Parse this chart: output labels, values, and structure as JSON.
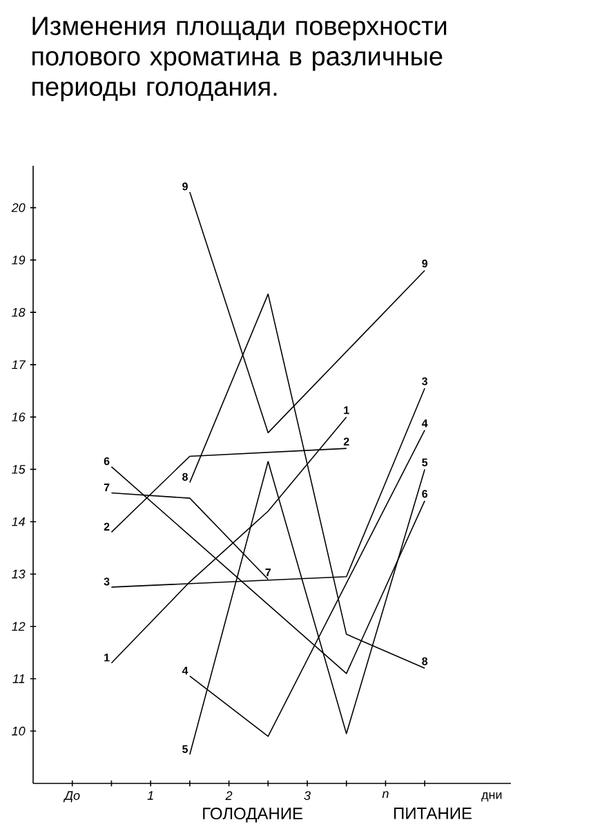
{
  "chart_data": {
    "type": "line",
    "title": "Изменения площади поверхности полового хроматина в различные периоды голодания.",
    "xlabel": "дни",
    "annotations": [
      "ГОЛОДАНИЕ",
      "ПИТАНИЕ"
    ],
    "xlim": [
      -0.5,
      5.6
    ],
    "ylim": [
      9,
      20.8
    ],
    "xticks": [
      {
        "value": 0,
        "label": "До"
      },
      {
        "value": 0.5,
        "label": null
      },
      {
        "value": 1,
        "label": "1"
      },
      {
        "value": 1.5,
        "label": null
      },
      {
        "value": 2,
        "label": "2"
      },
      {
        "value": 2.5,
        "label": null
      },
      {
        "value": 3,
        "label": "3"
      },
      {
        "value": 3.5,
        "label": null
      },
      {
        "value": 4,
        "label": "n"
      },
      {
        "value": 4.5,
        "label": null
      }
    ],
    "yticks": [
      10,
      11,
      12,
      13,
      14,
      15,
      16,
      17,
      18,
      19,
      20
    ],
    "line_style": "solid",
    "marker": "none",
    "grid": false,
    "legend": false,
    "series": [
      {
        "name": "1",
        "color": "#000000",
        "x": [
          0.5,
          1.5,
          2.5,
          3.5
        ],
        "values": [
          11.3,
          12.85,
          14.2,
          16.0
        ]
      },
      {
        "name": "2",
        "color": "#000000",
        "x": [
          0.5,
          1.5,
          3.5
        ],
        "values": [
          13.8,
          15.25,
          15.4
        ]
      },
      {
        "name": "3",
        "color": "#000000",
        "x": [
          0.5,
          3.5,
          4.5
        ],
        "values": [
          12.75,
          12.95,
          16.55
        ]
      },
      {
        "name": "4",
        "color": "#000000",
        "x": [
          1.5,
          2.5,
          4.5
        ],
        "values": [
          11.05,
          9.9,
          15.75
        ]
      },
      {
        "name": "5",
        "color": "#000000",
        "x": [
          1.5,
          2.5,
          3.5,
          4.5
        ],
        "values": [
          9.55,
          15.15,
          9.95,
          15.0
        ]
      },
      {
        "name": "6",
        "color": "#000000",
        "x": [
          0.5,
          3.5,
          4.5
        ],
        "values": [
          15.05,
          11.1,
          14.4
        ]
      },
      {
        "name": "7",
        "color": "#000000",
        "x": [
          0.5,
          1.5,
          2.5
        ],
        "values": [
          14.55,
          14.45,
          12.9
        ]
      },
      {
        "name": "8",
        "color": "#000000",
        "x": [
          1.5,
          2.5,
          3.5,
          4.5
        ],
        "values": [
          14.75,
          18.35,
          11.85,
          11.2
        ]
      },
      {
        "name": "9",
        "color": "#000000",
        "x": [
          1.5,
          2.5,
          4.5
        ],
        "values": [
          20.3,
          15.7,
          18.8
        ]
      }
    ]
  }
}
